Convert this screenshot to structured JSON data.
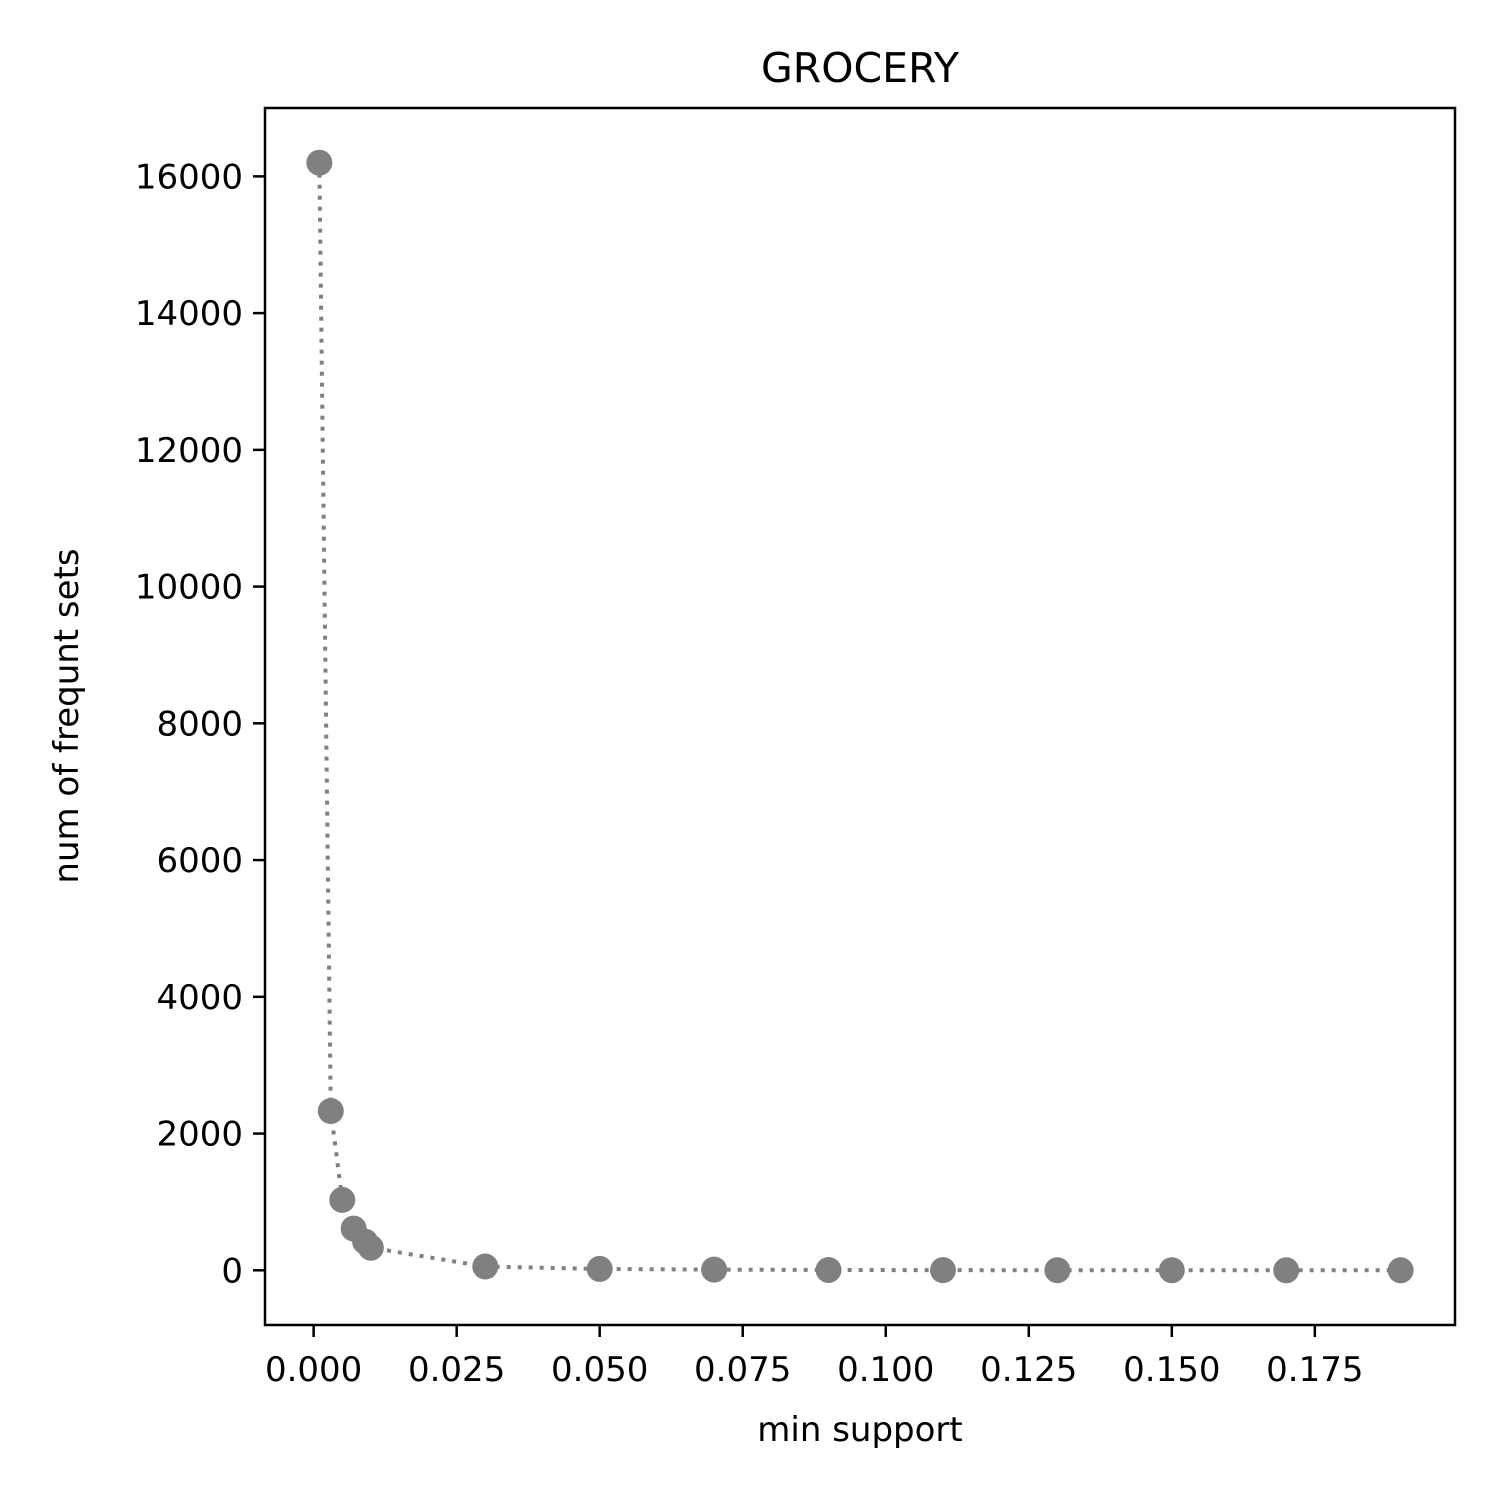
{
  "chart_data": {
    "type": "line",
    "title": "GROCERY",
    "xlabel": "min support",
    "ylabel": "num of frequnt sets",
    "xlim": [
      -0.0085,
      0.1995
    ],
    "ylim": [
      -800,
      17000
    ],
    "grid": false,
    "legend": "none",
    "line_style": "dotted",
    "marker": "circle",
    "color": "#808080",
    "x_ticks": [
      {
        "value": 0.0,
        "label": "0.000"
      },
      {
        "value": 0.025,
        "label": "0.025"
      },
      {
        "value": 0.05,
        "label": "0.050"
      },
      {
        "value": 0.075,
        "label": "0.075"
      },
      {
        "value": 0.1,
        "label": "0.100"
      },
      {
        "value": 0.125,
        "label": "0.125"
      },
      {
        "value": 0.15,
        "label": "0.150"
      },
      {
        "value": 0.175,
        "label": "0.175"
      }
    ],
    "y_ticks": [
      {
        "value": 0,
        "label": "0"
      },
      {
        "value": 2000,
        "label": "2000"
      },
      {
        "value": 4000,
        "label": "4000"
      },
      {
        "value": 6000,
        "label": "6000"
      },
      {
        "value": 8000,
        "label": "8000"
      },
      {
        "value": 10000,
        "label": "10000"
      },
      {
        "value": 12000,
        "label": "12000"
      },
      {
        "value": 14000,
        "label": "14000"
      },
      {
        "value": 16000,
        "label": "16000"
      }
    ],
    "series": [
      {
        "x": [
          0.001,
          0.003,
          0.005,
          0.007,
          0.009,
          0.01,
          0.03,
          0.05,
          0.07,
          0.09,
          0.11,
          0.13,
          0.15,
          0.17,
          0.19
        ],
        "y": [
          16200,
          2330,
          1030,
          610,
          420,
          330,
          55,
          20,
          10,
          5,
          2,
          1,
          1,
          0,
          0
        ]
      }
    ]
  }
}
